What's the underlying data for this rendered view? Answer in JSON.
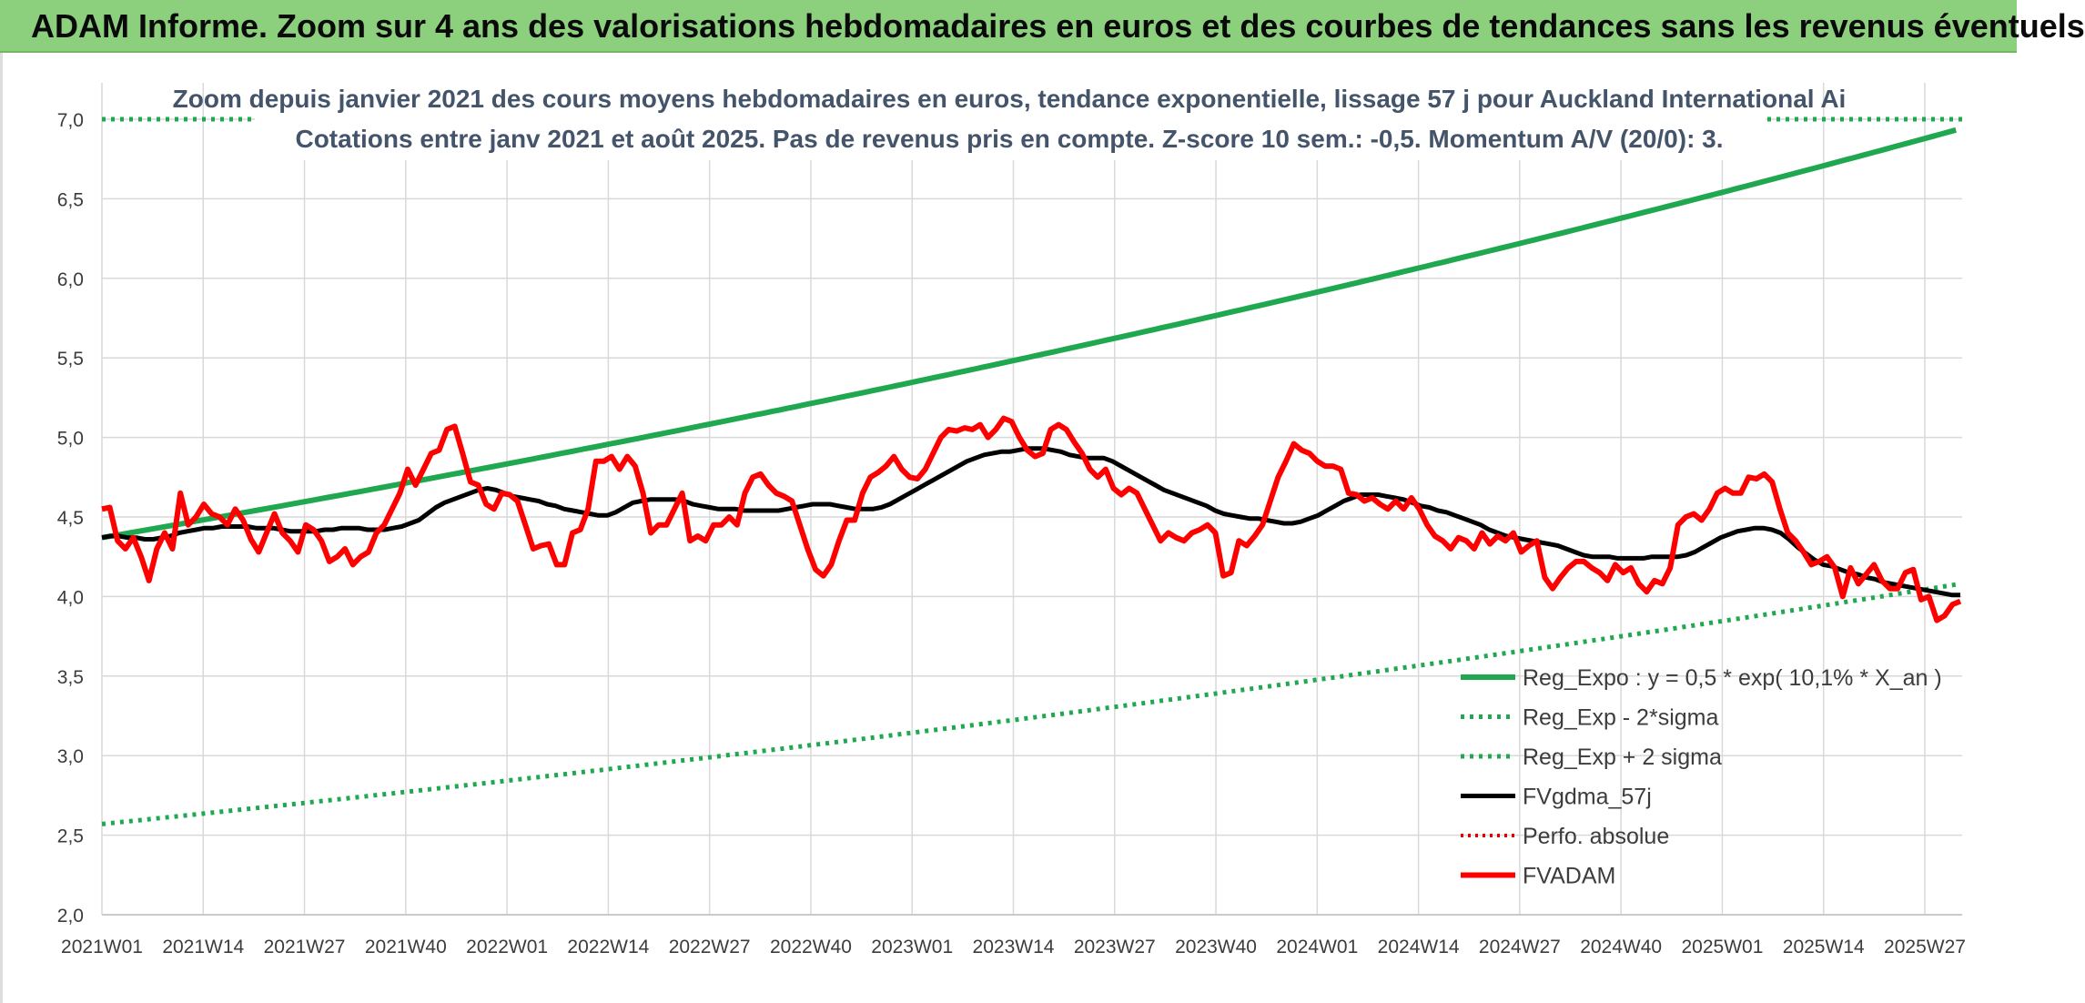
{
  "header": {
    "title": "ADAM Informe. Zoom sur 4 ans des valorisations hebdomadaires en euros et des courbes de tendances sans les revenus éventuels"
  },
  "chart_data": {
    "type": "line",
    "title_line1": "Zoom depuis janvier 2021 des cours moyens hebdomadaires en euros, tendance exponentielle, lissage 57 j pour Auckland International Ai",
    "title_line2": "Cotations entre janv 2021 et août 2025. Pas de revenus pris en compte. Z-score 10 sem.: -0,5. Momentum A/V (20/0): 3.",
    "ylim": [
      2.0,
      7.0
    ],
    "yticks": [
      "2,0",
      "2,5",
      "3,0",
      "3,5",
      "4,0",
      "4,5",
      "5,0",
      "5,5",
      "6,0",
      "6,5",
      "7,0"
    ],
    "xticks": [
      "2021W01",
      "2021W14",
      "2021W27",
      "2021W40",
      "2022W01",
      "2022W14",
      "2022W27",
      "2022W40",
      "2023W01",
      "2023W14",
      "2023W27",
      "2023W40",
      "2024W01",
      "2024W14",
      "2024W27",
      "2024W40",
      "2025W01",
      "2025W14",
      "2025W27"
    ],
    "grid": true,
    "legend_position": "bottom-right",
    "series": [
      {
        "name": "Reg_Expo : y = 0,5 * exp( 10,1% *  X_an )",
        "color": "#1fa84f",
        "style": "solid",
        "start": 4.37,
        "end": 6.94
      },
      {
        "name": "Reg_Exp - 2*sigma",
        "color": "#1fa84f",
        "style": "dotted",
        "start": 2.57,
        "end": 4.08
      },
      {
        "name": "Reg_Exp + 2 sigma",
        "color": "#1fa84f",
        "style": "dotted",
        "value": 7.0
      },
      {
        "name": "FVgdma_57j",
        "color": "#000000",
        "style": "solid",
        "values": [
          4.37,
          4.38,
          4.38,
          4.37,
          4.37,
          4.36,
          4.36,
          4.37,
          4.38,
          4.4,
          4.41,
          4.42,
          4.43,
          4.43,
          4.44,
          4.44,
          4.44,
          4.44,
          4.43,
          4.43,
          4.43,
          4.42,
          4.41,
          4.41,
          4.41,
          4.41,
          4.42,
          4.42,
          4.43,
          4.43,
          4.43,
          4.42,
          4.42,
          4.42,
          4.43,
          4.44,
          4.46,
          4.48,
          4.52,
          4.56,
          4.59,
          4.61,
          4.63,
          4.65,
          4.67,
          4.68,
          4.67,
          4.65,
          4.63,
          4.62,
          4.61,
          4.6,
          4.58,
          4.57,
          4.55,
          4.54,
          4.53,
          4.52,
          4.51,
          4.51,
          4.53,
          4.56,
          4.59,
          4.6,
          4.61,
          4.61,
          4.61,
          4.61,
          4.6,
          4.58,
          4.57,
          4.56,
          4.55,
          4.55,
          4.55,
          4.54,
          4.54,
          4.54,
          4.54,
          4.54,
          4.55,
          4.56,
          4.57,
          4.58,
          4.58,
          4.58,
          4.57,
          4.56,
          4.55,
          4.55,
          4.55,
          4.56,
          4.58,
          4.61,
          4.64,
          4.67,
          4.7,
          4.73,
          4.76,
          4.79,
          4.82,
          4.85,
          4.87,
          4.89,
          4.9,
          4.91,
          4.91,
          4.92,
          4.93,
          4.93,
          4.93,
          4.92,
          4.91,
          4.89,
          4.88,
          4.87,
          4.87,
          4.87,
          4.85,
          4.82,
          4.79,
          4.76,
          4.73,
          4.7,
          4.67,
          4.65,
          4.63,
          4.61,
          4.59,
          4.57,
          4.54,
          4.52,
          4.51,
          4.5,
          4.49,
          4.49,
          4.48,
          4.47,
          4.46,
          4.46,
          4.47,
          4.49,
          4.51,
          4.54,
          4.57,
          4.6,
          4.62,
          4.64,
          4.64,
          4.64,
          4.63,
          4.62,
          4.61,
          4.59,
          4.57,
          4.56,
          4.54,
          4.53,
          4.51,
          4.49,
          4.47,
          4.45,
          4.42,
          4.4,
          4.38,
          4.37,
          4.36,
          4.35,
          4.34,
          4.33,
          4.32,
          4.3,
          4.28,
          4.26,
          4.25,
          4.25,
          4.25,
          4.24,
          4.24,
          4.24,
          4.24,
          4.25,
          4.25,
          4.25,
          4.25,
          4.26,
          4.28,
          4.31,
          4.34,
          4.37,
          4.39,
          4.41,
          4.42,
          4.43,
          4.43,
          4.42,
          4.4,
          4.36,
          4.31,
          4.27,
          4.23,
          4.2,
          4.19,
          4.17,
          4.15,
          4.14,
          4.12,
          4.11,
          4.09,
          4.08,
          4.07,
          4.06,
          4.05,
          4.04,
          4.03,
          4.02,
          4.01,
          4.01
        ]
      },
      {
        "name": "Perfo. absolue",
        "color": "#e00000",
        "style": "dotted"
      },
      {
        "name": "FVADAM",
        "color": "#ff0000",
        "style": "solid",
        "values": [
          4.55,
          4.56,
          4.35,
          4.3,
          4.37,
          4.25,
          4.1,
          4.3,
          4.4,
          4.3,
          4.65,
          4.45,
          4.5,
          4.58,
          4.52,
          4.5,
          4.45,
          4.55,
          4.48,
          4.36,
          4.28,
          4.4,
          4.52,
          4.4,
          4.35,
          4.28,
          4.45,
          4.42,
          4.35,
          4.22,
          4.25,
          4.3,
          4.2,
          4.25,
          4.28,
          4.4,
          4.45,
          4.55,
          4.65,
          4.8,
          4.7,
          4.8,
          4.9,
          4.92,
          5.05,
          5.07,
          4.9,
          4.72,
          4.7,
          4.58,
          4.55,
          4.65,
          4.64,
          4.6,
          4.45,
          4.3,
          4.32,
          4.33,
          4.2,
          4.2,
          4.4,
          4.42,
          4.55,
          4.85,
          4.85,
          4.88,
          4.8,
          4.88,
          4.82,
          4.65,
          4.4,
          4.45,
          4.45,
          4.55,
          4.65,
          4.35,
          4.38,
          4.35,
          4.45,
          4.45,
          4.5,
          4.45,
          4.65,
          4.75,
          4.77,
          4.7,
          4.65,
          4.63,
          4.6,
          4.45,
          4.3,
          4.17,
          4.13,
          4.2,
          4.35,
          4.48,
          4.48,
          4.65,
          4.75,
          4.78,
          4.82,
          4.88,
          4.8,
          4.75,
          4.74,
          4.8,
          4.9,
          5.0,
          5.05,
          5.04,
          5.06,
          5.05,
          5.08,
          5.0,
          5.05,
          5.12,
          5.1,
          5.0,
          4.92,
          4.88,
          4.9,
          5.05,
          5.08,
          5.05,
          4.97,
          4.9,
          4.8,
          4.75,
          4.8,
          4.68,
          4.64,
          4.68,
          4.65,
          4.55,
          4.45,
          4.35,
          4.4,
          4.37,
          4.35,
          4.4,
          4.42,
          4.45,
          4.4,
          4.13,
          4.15,
          4.35,
          4.32,
          4.38,
          4.45,
          4.6,
          4.75,
          4.85,
          4.96,
          4.92,
          4.9,
          4.85,
          4.82,
          4.82,
          4.8,
          4.65,
          4.64,
          4.6,
          4.62,
          4.58,
          4.55,
          4.6,
          4.55,
          4.62,
          4.55,
          4.45,
          4.38,
          4.35,
          4.3,
          4.37,
          4.35,
          4.3,
          4.4,
          4.33,
          4.38,
          4.35,
          4.4,
          4.28,
          4.32,
          4.35,
          4.12,
          4.05,
          4.12,
          4.18,
          4.22,
          4.22,
          4.18,
          4.15,
          4.1,
          4.2,
          4.15,
          4.18,
          4.08,
          4.03,
          4.1,
          4.08,
          4.18,
          4.45,
          4.5,
          4.52,
          4.48,
          4.55,
          4.65,
          4.68,
          4.65,
          4.65,
          4.75,
          4.74,
          4.77,
          4.72,
          4.55,
          4.4,
          4.35,
          4.28,
          4.2,
          4.22,
          4.25,
          4.18,
          4.0,
          4.18,
          4.08,
          4.14,
          4.2,
          4.1,
          4.05,
          4.05,
          4.15,
          4.17,
          3.98,
          4.0,
          3.85,
          3.88,
          3.95,
          3.97
        ]
      }
    ]
  }
}
